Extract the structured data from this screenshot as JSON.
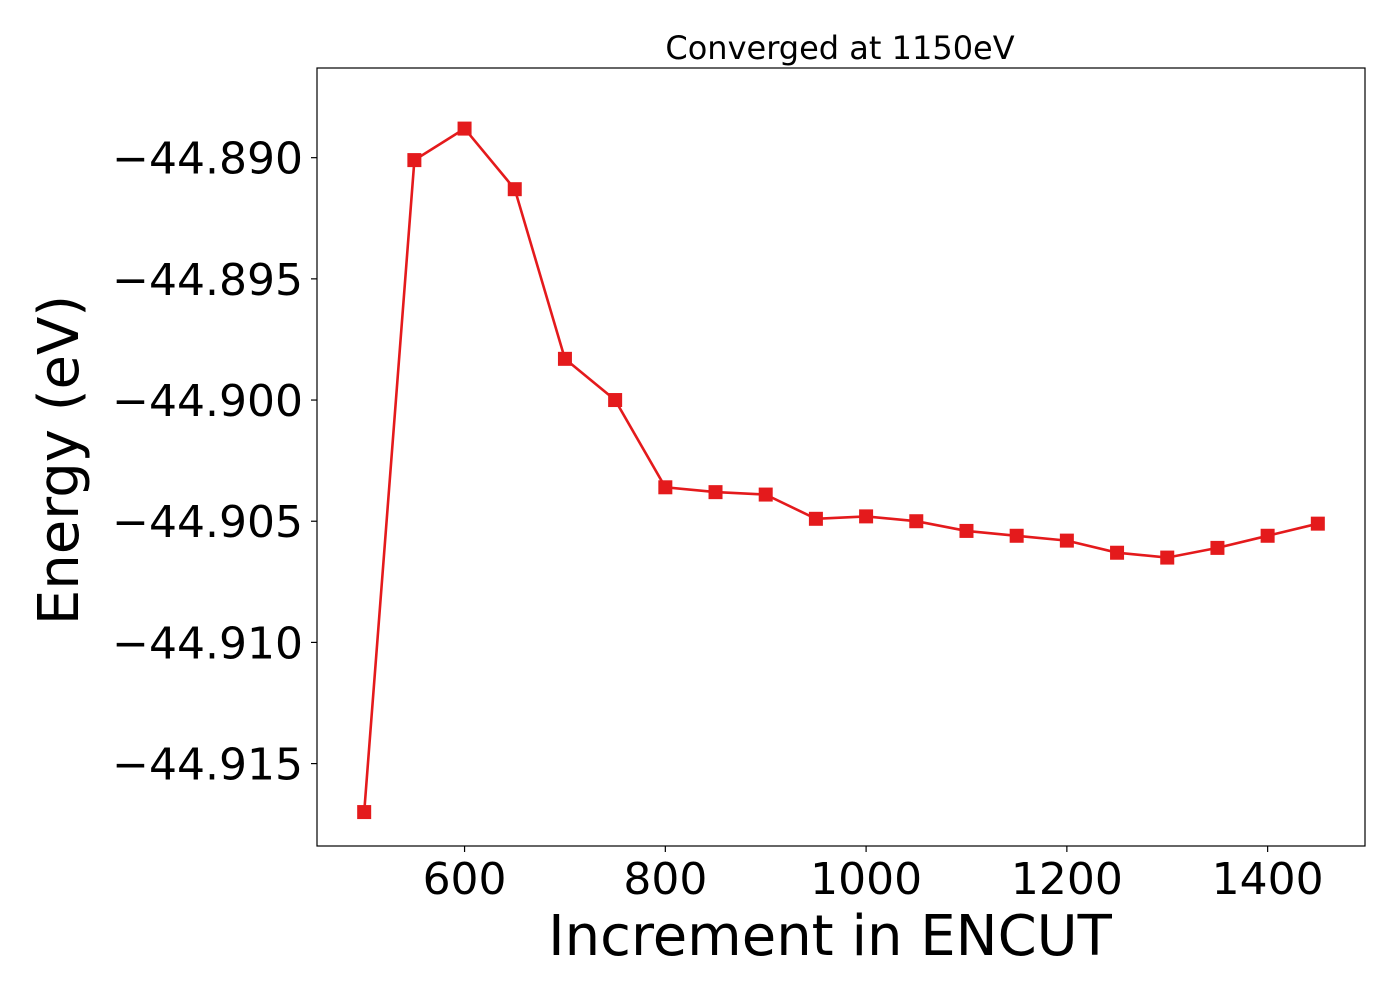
{
  "chart_data": {
    "type": "line",
    "title": "Converged at 1150eV",
    "xlabel": "Increment in ENCUT",
    "ylabel": "Energy (eV)",
    "xlim": [
      453,
      1497
    ],
    "ylim": [
      -44.9184,
      -44.8863
    ],
    "xticks": [
      600,
      800,
      1000,
      1200,
      1400
    ],
    "xtick_labels": [
      "600",
      "800",
      "1000",
      "1200",
      "1400"
    ],
    "yticks": [
      -44.89,
      -44.895,
      -44.9,
      -44.905,
      -44.91,
      -44.915
    ],
    "ytick_labels": [
      "−44.890",
      "−44.895",
      "−44.900",
      "−44.905",
      "−44.910",
      "−44.915"
    ],
    "grid": false,
    "legend": "none",
    "series": [
      {
        "color": "#e41a1c",
        "marker": "square",
        "x": [
          500,
          550,
          600,
          650,
          700,
          750,
          800,
          850,
          900,
          950,
          1000,
          1050,
          1100,
          1150,
          1200,
          1250,
          1300,
          1350,
          1400,
          1450
        ],
        "y": [
          -44.917,
          -44.8901,
          -44.8888,
          -44.8913,
          -44.8983,
          -44.9,
          -44.9036,
          -44.9038,
          -44.9039,
          -44.9049,
          -44.9048,
          -44.905,
          -44.9054,
          -44.9056,
          -44.9058,
          -44.9063,
          -44.9065,
          -44.9061,
          -44.9056,
          -44.9051
        ]
      }
    ]
  }
}
